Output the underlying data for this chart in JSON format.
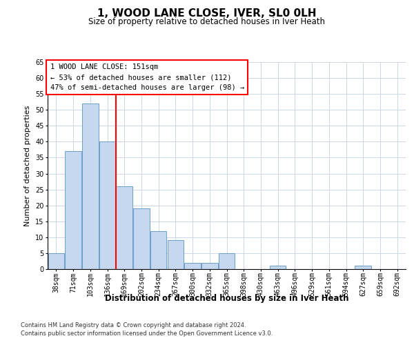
{
  "title": "1, WOOD LANE CLOSE, IVER, SL0 0LH",
  "subtitle": "Size of property relative to detached houses in Iver Heath",
  "xlabel": "Distribution of detached houses by size in Iver Heath",
  "ylabel": "Number of detached properties",
  "categories": [
    "38sqm",
    "71sqm",
    "103sqm",
    "136sqm",
    "169sqm",
    "202sqm",
    "234sqm",
    "267sqm",
    "300sqm",
    "332sqm",
    "365sqm",
    "398sqm",
    "430sqm",
    "463sqm",
    "496sqm",
    "529sqm",
    "561sqm",
    "594sqm",
    "627sqm",
    "659sqm",
    "692sqm"
  ],
  "values": [
    5,
    37,
    52,
    40,
    26,
    19,
    12,
    9,
    2,
    2,
    5,
    0,
    0,
    1,
    0,
    0,
    0,
    0,
    1,
    0,
    0
  ],
  "bar_color": "#c5d8f0",
  "bar_edge_color": "#6a9fcb",
  "vline_x": 3.5,
  "vline_color": "red",
  "annotation_text": "1 WOOD LANE CLOSE: 151sqm\n← 53% of detached houses are smaller (112)\n47% of semi-detached houses are larger (98) →",
  "ylim": [
    0,
    65
  ],
  "yticks": [
    0,
    5,
    10,
    15,
    20,
    25,
    30,
    35,
    40,
    45,
    50,
    55,
    60,
    65
  ],
  "footer_line1": "Contains HM Land Registry data © Crown copyright and database right 2024.",
  "footer_line2": "Contains public sector information licensed under the Open Government Licence v3.0.",
  "bg_color": "#ffffff",
  "grid_color": "#ccd6e8",
  "title_fontsize": 11,
  "subtitle_fontsize": 8.5,
  "ylabel_fontsize": 8,
  "xlabel_fontsize": 8.5,
  "tick_fontsize": 7,
  "annot_fontsize": 7.5,
  "footer_fontsize": 6
}
